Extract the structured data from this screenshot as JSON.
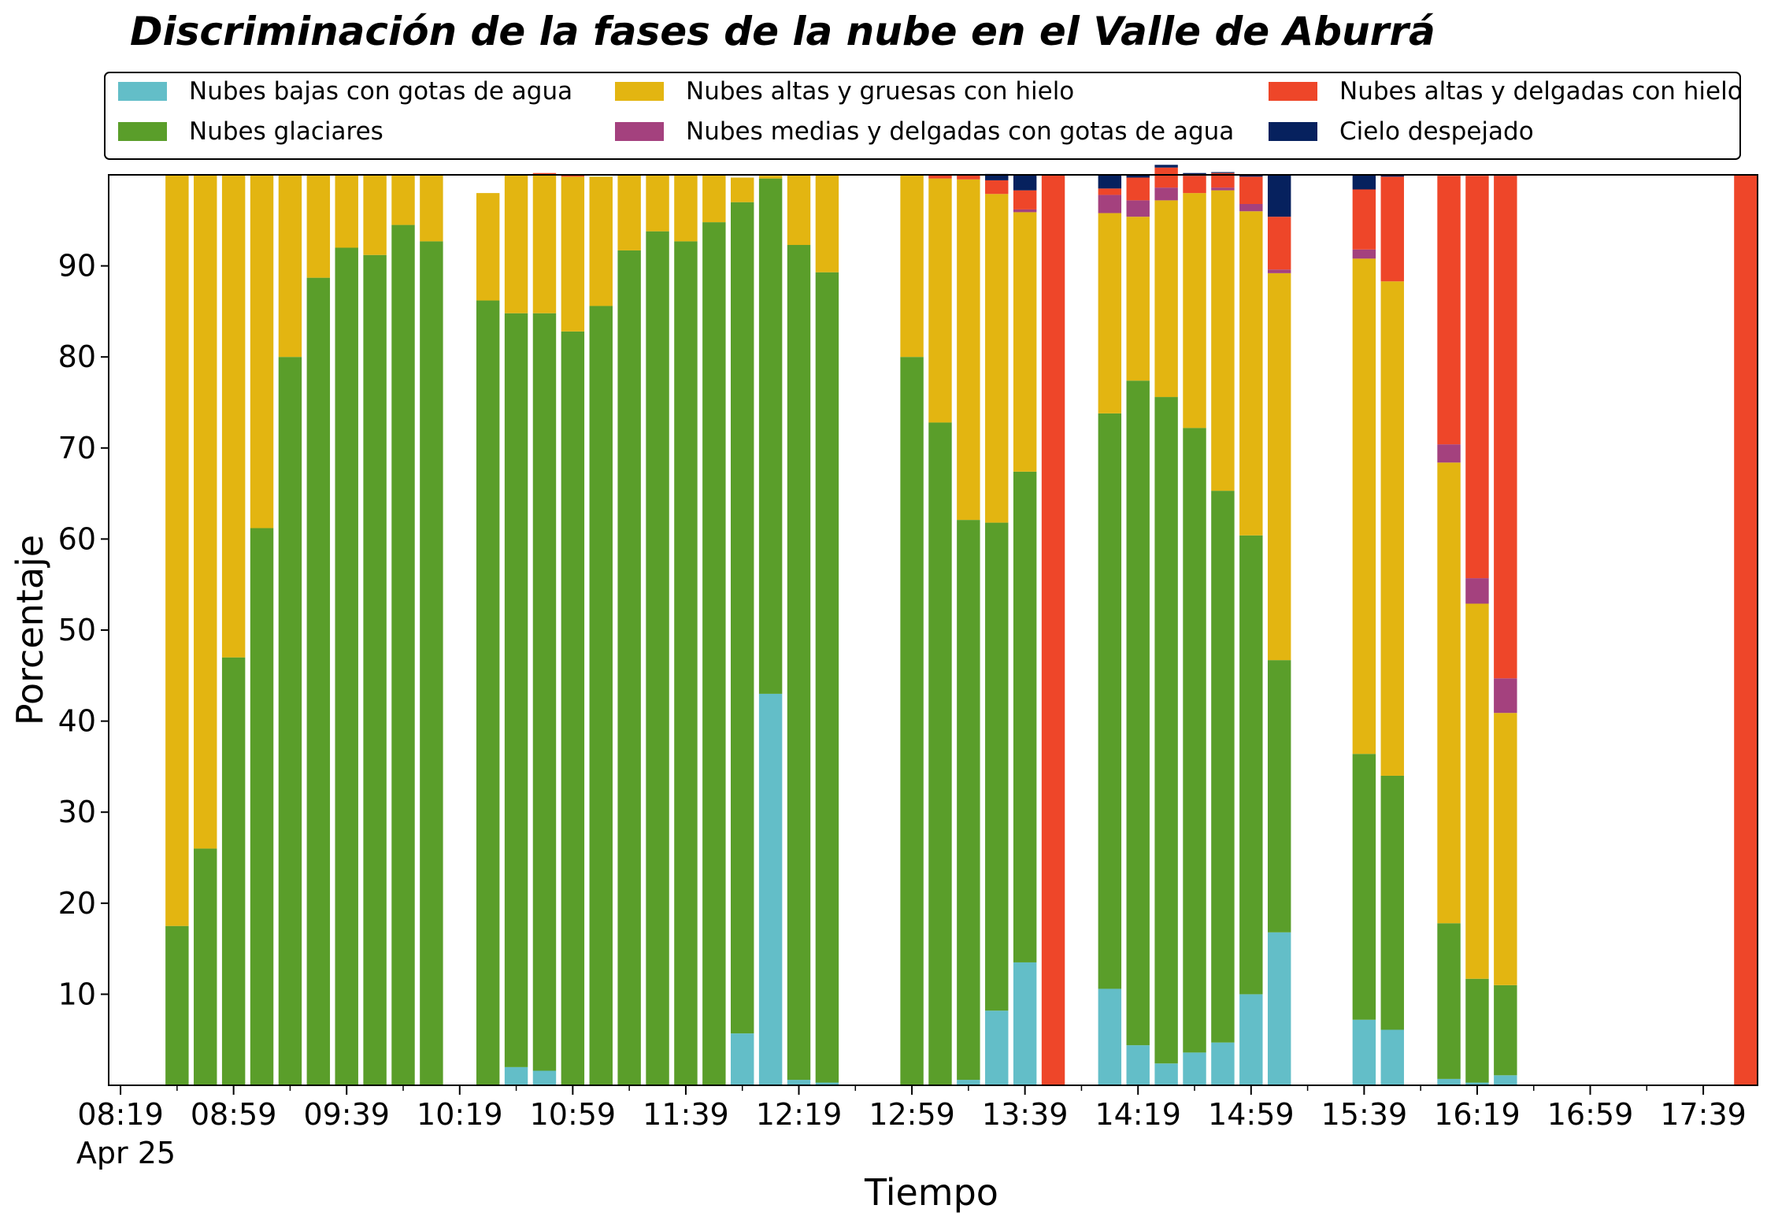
{
  "chart_data": {
    "type": "bar",
    "stacked": true,
    "title": "Discriminación de la fases de la nube en el Valle de Aburrá",
    "xlabel": "Tiempo",
    "ylabel": "Porcentaje",
    "ylim": [
      0,
      100
    ],
    "yticks": [
      10,
      20,
      30,
      40,
      50,
      60,
      70,
      80,
      90
    ],
    "grid": false,
    "legend_position": "top",
    "xticks": [
      "08:19",
      "08:59",
      "09:39",
      "10:19",
      "10:59",
      "11:39",
      "12:19",
      "12:59",
      "13:39",
      "14:19",
      "14:59",
      "15:39",
      "16:19",
      "16:59",
      "17:39"
    ],
    "x_date_label": "Apr 25",
    "x": [
      "08:19",
      "08:24",
      "08:29",
      "08:34",
      "08:39",
      "08:44",
      "08:49",
      "08:54",
      "08:59",
      "09:04",
      "09:09",
      "09:14",
      "09:19",
      "09:24",
      "09:29",
      "09:34",
      "09:39",
      "09:44",
      "09:49",
      "09:54",
      "09:59",
      "10:04",
      "10:09",
      "10:14",
      "10:19",
      "10:24",
      "10:29",
      "10:34",
      "10:39",
      "10:44",
      "10:49",
      "10:54",
      "10:59",
      "11:04",
      "11:09",
      "11:14",
      "11:19",
      "11:24",
      "11:29",
      "11:34",
      "11:39",
      "11:44",
      "11:49",
      "11:54",
      "11:59",
      "12:04",
      "12:09",
      "12:14",
      "12:19",
      "12:24",
      "12:29",
      "12:34",
      "12:39",
      "12:44",
      "12:49",
      "12:54",
      "12:59",
      "13:04",
      "13:09",
      "13:14",
      "13:19",
      "13:24",
      "13:29",
      "13:34",
      "13:39",
      "13:44",
      "13:49",
      "13:54",
      "13:59",
      "14:04",
      "14:09",
      "14:14",
      "14:19",
      "14:24",
      "14:29",
      "14:34",
      "14:39",
      "14:44",
      "14:49",
      "14:54",
      "14:59",
      "15:04",
      "15:09",
      "15:14",
      "15:19",
      "15:24",
      "15:29",
      "15:34",
      "15:39",
      "15:44",
      "15:49",
      "15:54",
      "15:59",
      "16:04",
      "16:09",
      "16:14",
      "16:19",
      "16:24",
      "16:29",
      "16:34",
      "16:39",
      "16:44",
      "16:49",
      "16:54",
      "16:59",
      "17:04",
      "17:09",
      "17:14",
      "17:19",
      "17:24",
      "17:29",
      "17:34",
      "17:39",
      "17:44",
      "17:49",
      "17:54"
    ],
    "series": [
      {
        "name": "Nubes bajas con gotas de agua",
        "color": "#63bec8",
        "values": {
          "10:39": 2.0,
          "10:49": 1.6,
          "11:59": 5.7,
          "12:09": 43.0,
          "12:19": 0.6,
          "12:29": 0.3,
          "13:19": 0.6,
          "13:29": 8.2,
          "13:39": 13.5,
          "14:09": 10.6,
          "14:19": 4.4,
          "14:29": 2.4,
          "14:39": 3.6,
          "14:49": 4.7,
          "14:59": 10.0,
          "15:09": 16.8,
          "15:39": 7.2,
          "15:49": 6.1,
          "16:09": 0.7,
          "16:19": 0.3,
          "16:29": 1.1
        }
      },
      {
        "name": "Nubes glaciares",
        "color": "#5a9e2a",
        "values": {
          "08:39": 17.5,
          "08:49": 26.0,
          "08:59": 47.0,
          "09:09": 61.2,
          "09:19": 80.0,
          "09:29": 88.7,
          "09:39": 92.0,
          "09:49": 91.2,
          "09:59": 94.5,
          "10:09": 92.7,
          "10:19": 0,
          "10:29": 86.2,
          "10:39": 82.8,
          "10:49": 83.2,
          "10:59": 82.8,
          "11:09": 85.6,
          "11:19": 91.7,
          "11:29": 93.8,
          "11:39": 92.7,
          "11:49": 94.8,
          "11:59": 91.3,
          "12:09": 56.6,
          "12:19": 91.7,
          "12:29": 89.0,
          "12:59": 80.0,
          "13:09": 72.8,
          "13:19": 61.5,
          "13:29": 53.6,
          "13:39": 53.9,
          "14:09": 63.2,
          "14:19": 73.0,
          "14:29": 73.2,
          "14:39": 68.6,
          "14:49": 60.6,
          "14:59": 50.4,
          "15:09": 29.9,
          "15:39": 29.2,
          "15:49": 27.9,
          "16:09": 17.1,
          "16:19": 11.4,
          "16:29": 9.9
        }
      },
      {
        "name": "Nubes altas y gruesas con hielo",
        "color": "#e3b511",
        "values": {
          "08:39": 82.5,
          "08:49": 74.0,
          "08:59": 53.0,
          "09:09": 38.8,
          "09:19": 20.0,
          "09:29": 11.3,
          "09:39": 8.0,
          "09:49": 8.8,
          "09:59": 5.5,
          "10:09": 7.3,
          "10:29": 11.8,
          "10:39": 15.2,
          "10:49": 15.2,
          "10:59": 17.0,
          "11:09": 14.2,
          "11:19": 8.3,
          "11:29": 6.2,
          "11:39": 7.3,
          "11:49": 5.2,
          "11:59": 2.7,
          "12:09": 0.3,
          "12:19": 7.7,
          "12:29": 10.7,
          "12:59": 20.0,
          "13:09": 26.8,
          "13:19": 37.4,
          "13:29": 36.1,
          "13:39": 28.5,
          "14:09": 22.0,
          "14:19": 18.0,
          "14:29": 21.6,
          "14:39": 25.8,
          "14:49": 33.0,
          "14:59": 35.6,
          "15:09": 42.5,
          "15:39": 54.4,
          "15:49": 54.3,
          "16:09": 50.6,
          "16:19": 41.2,
          "16:29": 29.9
        }
      },
      {
        "name": "Nubes medias y delgadas con gotas de agua",
        "color": "#a4417e",
        "values": {
          "13:39": 0.3,
          "14:09": 2.0,
          "14:19": 1.8,
          "14:29": 1.4,
          "14:49": 0.3,
          "14:59": 0.8,
          "15:09": 0.4,
          "15:39": 1.0,
          "16:09": 2.0,
          "16:19": 2.8,
          "16:29": 3.8
        }
      },
      {
        "name": "Nubes altas y delgadas con hielo",
        "color": "#ee4629",
        "values": {
          "10:49": 0.2,
          "10:59": 0.2,
          "13:09": 0.4,
          "13:19": 0.5,
          "13:29": 1.5,
          "13:39": 2.1,
          "13:49": 100,
          "14:09": 0.7,
          "14:19": 2.5,
          "14:29": 2.2,
          "14:39": 1.9,
          "14:49": 1.6,
          "14:59": 3.0,
          "15:09": 5.8,
          "15:39": 6.6,
          "15:49": 11.5,
          "16:09": 29.5,
          "16:19": 44.2,
          "16:29": 55.2,
          "17:54": 100
        }
      },
      {
        "name": "Cielo despejado",
        "color": "#06215e",
        "values": {
          "13:29": 0.7,
          "13:39": 1.7,
          "14:09": 1.5,
          "14:19": 0.3,
          "14:29": 0.3,
          "14:39": 0.3,
          "14:49": 0.1,
          "14:59": 0.2,
          "15:09": 4.6,
          "15:39": 1.6,
          "15:49": 0.2,
          "16:29": 0.1
        }
      }
    ]
  }
}
